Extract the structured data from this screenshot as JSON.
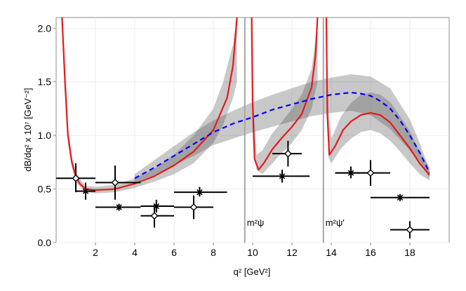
{
  "chart_data": {
    "type": "line",
    "title": "",
    "xlabel": "q²  [GeV²]",
    "ylabel": "dB/dq² x 10⁷  [GeV⁻²]",
    "xlim": [
      0,
      20
    ],
    "ylim": [
      0,
      2.1
    ],
    "x_ticks": [
      2,
      4,
      6,
      8,
      10,
      12,
      14,
      16,
      18
    ],
    "y_ticks": [
      0.0,
      0.5,
      1.0,
      1.5,
      2.0
    ],
    "x_tick_labels": [
      "2",
      "4",
      "6",
      "8",
      "10",
      "12",
      "14",
      "16",
      "18"
    ],
    "y_tick_labels": [
      "0.0",
      "0.5",
      "1.0",
      "1.5",
      "2.0"
    ],
    "grid": true,
    "resonances": [
      {
        "x": 9.6,
        "label": "m²ψ"
      },
      {
        "x": 13.6,
        "label": "m²ψ′"
      }
    ],
    "series": [
      {
        "kind": "line",
        "style": "solid",
        "color": "#e41a1c",
        "segments": [
          [
            [
              0.3,
              2.1
            ],
            [
              0.45,
              1.5
            ],
            [
              0.6,
              1.0
            ],
            [
              0.8,
              0.75
            ],
            [
              1.0,
              0.62
            ],
            [
              1.2,
              0.55
            ],
            [
              1.5,
              0.5
            ],
            [
              2.0,
              0.49
            ],
            [
              3.0,
              0.5
            ],
            [
              4.0,
              0.55
            ],
            [
              5.0,
              0.62
            ],
            [
              6.0,
              0.72
            ],
            [
              7.0,
              0.85
            ],
            [
              8.0,
              1.05
            ],
            [
              8.7,
              1.35
            ],
            [
              9.0,
              1.65
            ],
            [
              9.2,
              2.1
            ]
          ],
          [
            [
              9.95,
              2.1
            ],
            [
              10.0,
              1.3
            ],
            [
              10.1,
              0.78
            ],
            [
              10.3,
              0.68
            ],
            [
              10.6,
              0.75
            ],
            [
              11.0,
              0.87
            ],
            [
              11.5,
              0.98
            ],
            [
              12.0,
              1.08
            ],
            [
              12.5,
              1.2
            ],
            [
              13.0,
              1.45
            ],
            [
              13.2,
              1.75
            ],
            [
              13.3,
              2.1
            ]
          ],
          [
            [
              13.75,
              2.1
            ],
            [
              13.8,
              1.2
            ],
            [
              13.9,
              0.82
            ],
            [
              14.2,
              0.9
            ],
            [
              14.6,
              1.05
            ],
            [
              15.0,
              1.13
            ],
            [
              15.5,
              1.19
            ],
            [
              16.0,
              1.21
            ],
            [
              16.5,
              1.19
            ],
            [
              17.0,
              1.12
            ],
            [
              17.5,
              1.0
            ],
            [
              18.0,
              0.88
            ],
            [
              18.5,
              0.74
            ],
            [
              19.0,
              0.63
            ]
          ]
        ]
      },
      {
        "kind": "line",
        "style": "dashed",
        "color": "#0000ff",
        "segments": [
          [
            [
              4.0,
              0.6
            ],
            [
              5.0,
              0.7
            ],
            [
              6.0,
              0.81
            ],
            [
              7.0,
              0.92
            ],
            [
              8.0,
              1.03
            ],
            [
              9.0,
              1.11
            ],
            [
              10.0,
              1.17
            ],
            [
              11.0,
              1.24
            ],
            [
              12.0,
              1.29
            ],
            [
              13.0,
              1.34
            ],
            [
              14.0,
              1.38
            ],
            [
              14.5,
              1.39
            ],
            [
              15.0,
              1.4
            ],
            [
              15.5,
              1.39
            ],
            [
              16.0,
              1.37
            ],
            [
              16.5,
              1.32
            ],
            [
              17.0,
              1.25
            ],
            [
              17.5,
              1.14
            ],
            [
              18.0,
              1.0
            ],
            [
              18.5,
              0.84
            ],
            [
              19.0,
              0.65
            ]
          ]
        ]
      }
    ],
    "bands": [
      {
        "color": "#555555",
        "opacity": 0.32,
        "upper": [
          [
            0.4,
            2.1
          ],
          [
            0.6,
            1.08
          ],
          [
            0.8,
            0.8
          ],
          [
            1.0,
            0.66
          ],
          [
            1.3,
            0.57
          ],
          [
            1.5,
            0.53
          ],
          [
            2.0,
            0.52
          ],
          [
            3.0,
            0.54
          ],
          [
            4.0,
            0.6
          ],
          [
            5.0,
            0.69
          ],
          [
            6.0,
            0.82
          ],
          [
            7.0,
            1.0
          ],
          [
            8.0,
            1.25
          ],
          [
            8.5,
            1.5
          ],
          [
            9.0,
            1.85
          ],
          [
            9.2,
            2.1
          ]
        ],
        "lower": [
          [
            9.2,
            1.5
          ],
          [
            9.0,
            1.35
          ],
          [
            8.5,
            1.1
          ],
          [
            8.0,
            0.93
          ],
          [
            7.0,
            0.74
          ],
          [
            6.0,
            0.64
          ],
          [
            5.0,
            0.57
          ],
          [
            4.0,
            0.51
          ],
          [
            3.0,
            0.47
          ],
          [
            2.0,
            0.46
          ],
          [
            1.5,
            0.47
          ],
          [
            1.3,
            0.51
          ],
          [
            1.0,
            0.56
          ],
          [
            0.8,
            0.7
          ],
          [
            0.6,
            0.92
          ],
          [
            0.4,
            2.1
          ]
        ]
      },
      {
        "color": "#555555",
        "opacity": 0.32,
        "upper": [
          [
            9.95,
            2.1
          ],
          [
            10.05,
            1.25
          ],
          [
            10.2,
            0.82
          ],
          [
            10.5,
            0.86
          ],
          [
            11.0,
            1.02
          ],
          [
            11.5,
            1.13
          ],
          [
            12.0,
            1.25
          ],
          [
            12.5,
            1.38
          ],
          [
            13.0,
            1.62
          ],
          [
            13.2,
            1.9
          ],
          [
            13.3,
            2.1
          ]
        ],
        "lower": [
          [
            13.3,
            1.5
          ],
          [
            13.0,
            1.25
          ],
          [
            12.5,
            1.05
          ],
          [
            12.0,
            0.93
          ],
          [
            11.5,
            0.84
          ],
          [
            11.0,
            0.74
          ],
          [
            10.5,
            0.64
          ],
          [
            10.2,
            0.68
          ],
          [
            10.05,
            1.0
          ],
          [
            9.95,
            2.1
          ]
        ]
      },
      {
        "color": "#555555",
        "opacity": 0.32,
        "upper": [
          [
            13.75,
            2.1
          ],
          [
            13.85,
            1.25
          ],
          [
            14.0,
            0.97
          ],
          [
            14.5,
            1.18
          ],
          [
            15.0,
            1.3
          ],
          [
            15.5,
            1.38
          ],
          [
            16.0,
            1.4
          ],
          [
            16.5,
            1.38
          ],
          [
            17.0,
            1.31
          ],
          [
            17.5,
            1.18
          ],
          [
            18.0,
            1.04
          ],
          [
            18.5,
            0.85
          ],
          [
            19.0,
            0.7
          ]
        ],
        "lower": [
          [
            19.0,
            0.58
          ],
          [
            18.5,
            0.64
          ],
          [
            18.0,
            0.74
          ],
          [
            17.5,
            0.85
          ],
          [
            17.0,
            0.95
          ],
          [
            16.5,
            1.02
          ],
          [
            16.0,
            1.05
          ],
          [
            15.5,
            1.03
          ],
          [
            15.0,
            0.97
          ],
          [
            14.5,
            0.88
          ],
          [
            14.0,
            0.74
          ],
          [
            13.85,
            0.8
          ],
          [
            13.75,
            2.1
          ]
        ]
      },
      {
        "color": "#555555",
        "opacity": 0.32,
        "upper": [
          [
            4.0,
            0.64
          ],
          [
            5.0,
            0.77
          ],
          [
            6.0,
            0.9
          ],
          [
            7.0,
            1.03
          ],
          [
            8.0,
            1.14
          ],
          [
            9.0,
            1.23
          ],
          [
            10.0,
            1.31
          ],
          [
            11.0,
            1.38
          ],
          [
            12.0,
            1.44
          ],
          [
            13.0,
            1.5
          ],
          [
            14.0,
            1.54
          ],
          [
            15.0,
            1.57
          ],
          [
            16.0,
            1.55
          ],
          [
            17.0,
            1.44
          ],
          [
            18.0,
            1.15
          ],
          [
            18.5,
            0.93
          ],
          [
            19.0,
            0.68
          ]
        ],
        "lower": [
          [
            19.0,
            0.6
          ],
          [
            18.5,
            0.76
          ],
          [
            18.0,
            0.86
          ],
          [
            17.0,
            1.06
          ],
          [
            16.0,
            1.19
          ],
          [
            15.0,
            1.23
          ],
          [
            14.0,
            1.21
          ],
          [
            13.0,
            1.18
          ],
          [
            12.0,
            1.13
          ],
          [
            11.0,
            1.08
          ],
          [
            10.0,
            1.03
          ],
          [
            9.0,
            0.97
          ],
          [
            8.0,
            0.91
          ],
          [
            7.0,
            0.81
          ],
          [
            6.0,
            0.72
          ],
          [
            5.0,
            0.63
          ],
          [
            4.0,
            0.56
          ]
        ]
      }
    ],
    "data_points": [
      {
        "marker": "diamond",
        "x": 1.0,
        "y": 0.6,
        "xerr": [
          0.0,
          2.0
        ],
        "yerr": [
          0.47,
          0.74
        ]
      },
      {
        "marker": "star",
        "x": 1.5,
        "y": 0.48,
        "xerr": [
          1.0,
          2.0
        ],
        "yerr": [
          0.4,
          0.56
        ]
      },
      {
        "marker": "diamond",
        "x": 3.0,
        "y": 0.56,
        "xerr": [
          2.0,
          4.3
        ],
        "yerr": [
          0.4,
          0.72
        ]
      },
      {
        "marker": "star",
        "x": 3.2,
        "y": 0.33,
        "xerr": [
          2.0,
          4.3
        ],
        "yerr": [
          0.3,
          0.36
        ]
      },
      {
        "marker": "diamond",
        "x": 5.0,
        "y": 0.25,
        "xerr": [
          4.3,
          6.0
        ],
        "yerr": [
          0.14,
          0.36
        ]
      },
      {
        "marker": "star",
        "x": 5.1,
        "y": 0.34,
        "xerr": [
          4.3,
          6.0
        ],
        "yerr": [
          0.28,
          0.4
        ]
      },
      {
        "marker": "diamond",
        "x": 7.0,
        "y": 0.33,
        "xerr": [
          6.0,
          8.0
        ],
        "yerr": [
          0.22,
          0.44
        ]
      },
      {
        "marker": "star",
        "x": 7.3,
        "y": 0.47,
        "xerr": [
          6.0,
          8.7
        ],
        "yerr": [
          0.43,
          0.52
        ]
      },
      {
        "marker": "star",
        "x": 11.5,
        "y": 0.62,
        "xerr": [
          10.0,
          12.9
        ],
        "yerr": [
          0.56,
          0.68
        ]
      },
      {
        "marker": "diamond",
        "x": 11.8,
        "y": 0.83,
        "xerr": [
          11.0,
          12.5
        ],
        "yerr": [
          0.71,
          0.95
        ]
      },
      {
        "marker": "star",
        "x": 15.0,
        "y": 0.65,
        "xerr": [
          14.2,
          16.0
        ],
        "yerr": [
          0.6,
          0.71
        ]
      },
      {
        "marker": "diamond",
        "x": 16.0,
        "y": 0.65,
        "xerr": [
          14.2,
          17.0
        ],
        "yerr": [
          0.53,
          0.77
        ]
      },
      {
        "marker": "star",
        "x": 17.5,
        "y": 0.42,
        "xerr": [
          16.0,
          19.0
        ],
        "yerr": [
          0.39,
          0.45
        ]
      },
      {
        "marker": "diamond",
        "x": 18.0,
        "y": 0.12,
        "xerr": [
          17.0,
          19.0
        ],
        "yerr": [
          0.04,
          0.2
        ]
      }
    ]
  }
}
